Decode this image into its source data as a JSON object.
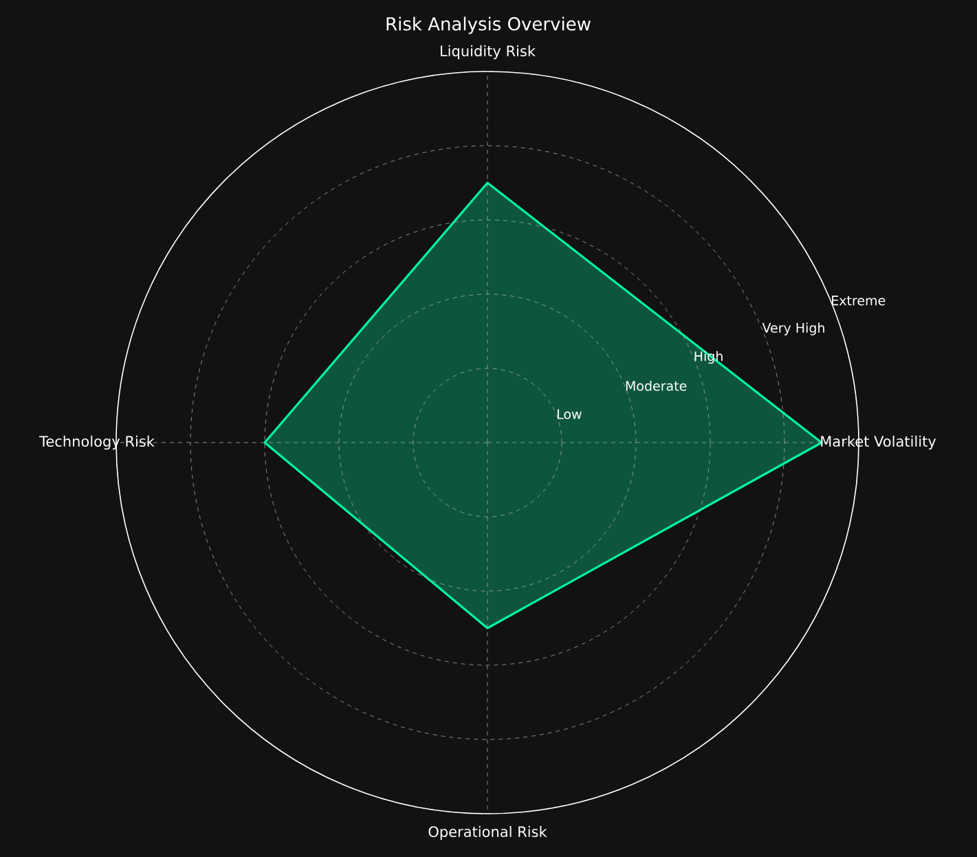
{
  "chart_data": {
    "type": "radar",
    "title": "Risk Analysis Overview",
    "categories": [
      "Liquidity Risk",
      "Market Volatility",
      "Operational Risk",
      "Technology Risk"
    ],
    "series": [
      {
        "color": "#00f5a0",
        "values": [
          3.5,
          4.5,
          2.5,
          3
        ]
      }
    ],
    "ylim": [
      0,
      5
    ],
    "yticks": [
      {
        "value": 1,
        "label": "Low"
      },
      {
        "value": 2,
        "label": "Moderate"
      },
      {
        "value": 3,
        "label": "High"
      },
      {
        "value": 4,
        "label": "Very High"
      },
      {
        "value": 5,
        "label": "Extreme"
      }
    ],
    "grid": true
  }
}
